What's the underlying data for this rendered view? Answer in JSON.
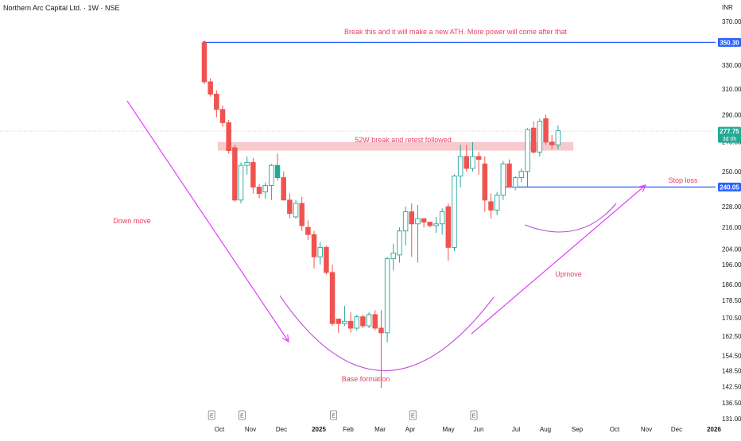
{
  "header": {
    "title": "Northern Arc Capital Ltd. · 1W · NSE"
  },
  "colors": {
    "up": "#26a69a",
    "down": "#ef5350",
    "highlight": "#22ab94",
    "annotation": "#e84060",
    "magenta": "#e040fb",
    "curve": "#b84fd0",
    "blue": "#2962ff",
    "zone": "#f6c1c6",
    "axis_text": "#131722",
    "grid": "#e0e3eb"
  },
  "chart_data": {
    "type": "candlestick",
    "currency": "INR",
    "y_scale": "log",
    "ylim": [
      129,
      376
    ],
    "y_ticks": [
      370.0,
      350.0,
      330.0,
      310.0,
      290.0,
      270.0,
      250.0,
      228.0,
      216.0,
      204.0,
      196.0,
      186.0,
      178.5,
      170.5,
      162.5,
      154.5,
      148.5,
      142.5,
      136.5,
      131.0
    ],
    "x_ticks": [
      "Oct",
      "Nov",
      "Dec",
      "2025",
      "Feb",
      "Mar",
      "Apr",
      "May",
      "Jun",
      "Jul",
      "Aug",
      "Sep",
      "Oct",
      "Nov",
      "Dec",
      "2026"
    ],
    "earnings_marker": "E",
    "earnings_weeks": [
      1,
      6,
      21,
      34,
      44
    ],
    "candles": [
      [
        350,
        351,
        314,
        316
      ],
      [
        316,
        319,
        304,
        306
      ],
      [
        306,
        309,
        288,
        294
      ],
      [
        294,
        297,
        281,
        284
      ],
      [
        284,
        286,
        262,
        264
      ],
      [
        266,
        268,
        231,
        232
      ],
      [
        232,
        256,
        230,
        254
      ],
      [
        254,
        260,
        248,
        256
      ],
      [
        256,
        259,
        236,
        240
      ],
      [
        240,
        242,
        233,
        236
      ],
      [
        237,
        243,
        233,
        241
      ],
      [
        241,
        255,
        232,
        254
      ],
      [
        254,
        262,
        244,
        246
      ],
      [
        246,
        250,
        232,
        232
      ],
      [
        232,
        236,
        221,
        224
      ],
      [
        222,
        232,
        221,
        230
      ],
      [
        230,
        234,
        214,
        217
      ],
      [
        216,
        220,
        209,
        212
      ],
      [
        212,
        214,
        194,
        200
      ],
      [
        200,
        208,
        196,
        205
      ],
      [
        205,
        206,
        191,
        192
      ],
      [
        192,
        196,
        167,
        168
      ],
      [
        170,
        170,
        164,
        168
      ],
      [
        168,
        176,
        167,
        169
      ],
      [
        169,
        173,
        164,
        166
      ],
      [
        166,
        172,
        165,
        171
      ],
      [
        171,
        172,
        166,
        167
      ],
      [
        167,
        173,
        166,
        172
      ],
      [
        172,
        174,
        165,
        166
      ],
      [
        166,
        174,
        142,
        164
      ],
      [
        164,
        200,
        160,
        199
      ],
      [
        199,
        207,
        193,
        202
      ],
      [
        201,
        216,
        197,
        214
      ],
      [
        214,
        228,
        206,
        225
      ],
      [
        225,
        230,
        200,
        218
      ],
      [
        218,
        229,
        197,
        221
      ],
      [
        221,
        221,
        216,
        219
      ],
      [
        219,
        219,
        216,
        217
      ],
      [
        217,
        222,
        213,
        218
      ],
      [
        218,
        227,
        212,
        225
      ],
      [
        228,
        230,
        198,
        205
      ],
      [
        205,
        248,
        203,
        247
      ],
      [
        247,
        268,
        240,
        260
      ],
      [
        260,
        268,
        250,
        252
      ],
      [
        252,
        270,
        250,
        260
      ],
      [
        260,
        263,
        248,
        258
      ],
      [
        255,
        260,
        225,
        232
      ],
      [
        231,
        236,
        221,
        226
      ],
      [
        226,
        237,
        223,
        235
      ],
      [
        235,
        257,
        232,
        255
      ],
      [
        255,
        258,
        240,
        240
      ],
      [
        240,
        247,
        238,
        246
      ],
      [
        246,
        252,
        243,
        250
      ],
      [
        250,
        280,
        240,
        279
      ],
      [
        280,
        285,
        262,
        263
      ],
      [
        263,
        287,
        260,
        285
      ],
      [
        287,
        290,
        268,
        270
      ],
      [
        270,
        275,
        265,
        268
      ],
      [
        268,
        282,
        265,
        278
      ]
    ],
    "last_candle_highlight": true,
    "price_labels": [
      {
        "value": 350.3,
        "text": "350.30",
        "color": "#2962ff"
      },
      {
        "value": 277.75,
        "text": "277.75",
        "sub": "3d 0h",
        "color": "#22ab94"
      },
      {
        "value": 240.05,
        "text": "240.05",
        "color": "#2962ff"
      }
    ],
    "lines": [
      {
        "name": "ath-resistance",
        "value": 350.3,
        "from_week": 0,
        "to_week": 100
      },
      {
        "name": "stop-loss",
        "value": 240.05,
        "from_week": 49,
        "to_week": 100
      },
      {
        "name": "current-price",
        "value": 277.75,
        "from_week": -25,
        "to_week": 100
      }
    ],
    "zone": {
      "from_week": 2.2,
      "to_week": 60.5,
      "low": 264,
      "high": 270,
      "label": "52W break and retest followed"
    },
    "annotations": {
      "ath": "Break this and it will make a new ATH. More power will come after that",
      "down_move": "Down move",
      "base": "Base formation",
      "upmove": "Upmove",
      "stop_loss": "Stop loss"
    }
  }
}
